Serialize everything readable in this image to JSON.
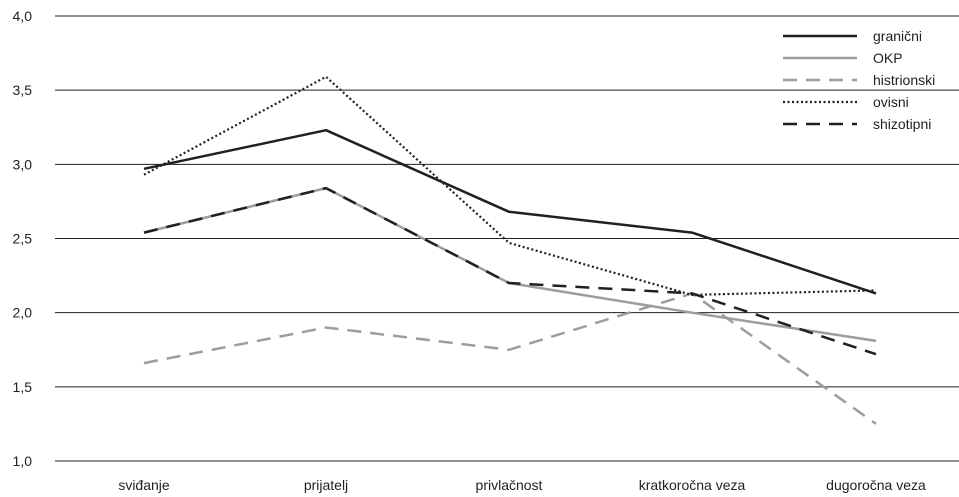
{
  "chart_data": {
    "type": "line",
    "title": "",
    "xlabel": "",
    "ylabel": "",
    "categories": [
      "sviđanje",
      "prijatelj",
      "privlačnost",
      "kratkoročna veza",
      "dugoročna veza"
    ],
    "ylim": [
      1.0,
      4.0
    ],
    "yticks": [
      "1,0",
      "1,5",
      "2,0",
      "2,5",
      "3,0",
      "3,5",
      "4,0"
    ],
    "grid": true,
    "legend_position": "top-right",
    "series": [
      {
        "name": "granični",
        "values": [
          2.97,
          3.23,
          2.68,
          2.54,
          2.13
        ],
        "color": "#231f20",
        "style": "solid"
      },
      {
        "name": "OKP",
        "values": [
          2.54,
          2.84,
          2.2,
          2.0,
          1.81
        ],
        "color": "#9d9d9d",
        "style": "solid"
      },
      {
        "name": "histrionski",
        "values": [
          1.66,
          1.9,
          1.75,
          2.13,
          1.25
        ],
        "color": "#9d9d9d",
        "style": "dashed"
      },
      {
        "name": "ovisni",
        "values": [
          2.93,
          3.59,
          2.47,
          2.12,
          2.15
        ],
        "color": "#231f20",
        "style": "dotted"
      },
      {
        "name": "shizotipni",
        "values": [
          2.54,
          2.84,
          2.2,
          2.13,
          1.72
        ],
        "color": "#231f20",
        "style": "dashed"
      }
    ]
  }
}
